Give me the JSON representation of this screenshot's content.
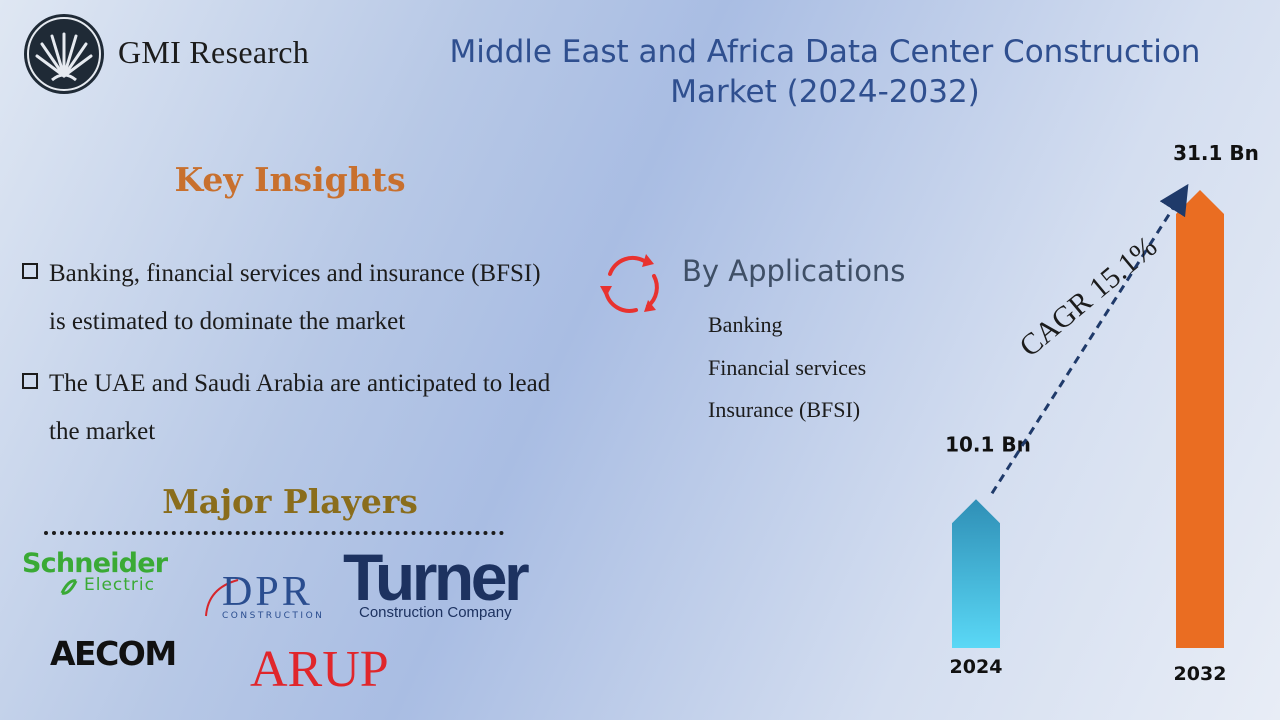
{
  "brand": {
    "name": "GMI Research"
  },
  "title": "Middle East and Africa Data Center Construction Market (2024-2032)",
  "key_insights": {
    "heading": "Key Insights",
    "items": [
      "Banking, financial services and insurance (BFSI) is estimated to dominate the market",
      "The UAE and Saudi Arabia are anticipated to lead the market"
    ]
  },
  "applications": {
    "heading": "By Applications",
    "items": [
      "Banking",
      "Financial services",
      "Insurance  (BFSI)"
    ]
  },
  "major_players": {
    "heading": "Major Players",
    "logos": {
      "schneider_line1": "Schneider",
      "schneider_line2": "Electric",
      "dpr": "DPR",
      "dpr_sub": "CONSTRUCTION",
      "turner": "Turner",
      "turner_sub": "Construction Company",
      "aecom": "AECOM",
      "arup": "ARUP"
    }
  },
  "colors": {
    "title": "#2f4f8f",
    "key_heading": "#c8702e",
    "major_heading": "#8a6d1c",
    "bar_2024": "#4cc8ec",
    "bar_2032": "#ea6d22",
    "cycle_arrows": "#e8322f",
    "trend_arrow": "#1f3a6a"
  },
  "chart_data": {
    "type": "bar",
    "categories": [
      "2024",
      "2032"
    ],
    "values": [
      10.1,
      31.1
    ],
    "value_labels": [
      "10.1 Bn",
      "31.1 Bn"
    ],
    "unit": "Bn",
    "annotation": "CAGR 15.1%",
    "title": "",
    "xlabel": "",
    "ylabel": ""
  }
}
